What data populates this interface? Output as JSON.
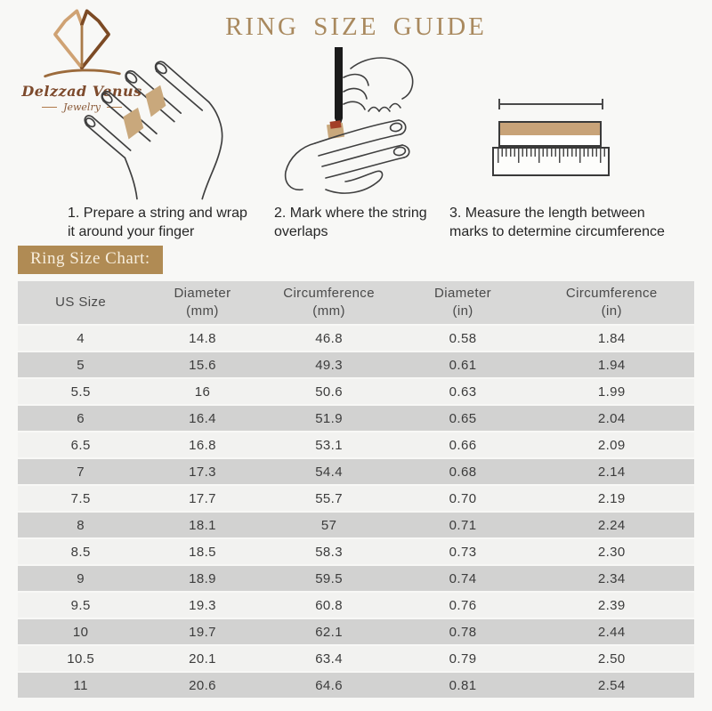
{
  "brand": {
    "name": "Delzzad Venus",
    "subtitle": "Jewelry"
  },
  "title": "RING SIZE GUIDE",
  "steps": [
    {
      "icon": "hand-with-string-icon",
      "line1": "1. Prepare a string and wrap",
      "line2": "it around your finger"
    },
    {
      "icon": "hand-marking-pen-icon",
      "line1": "2. Mark where the string",
      "line2": "overlaps"
    },
    {
      "icon": "ruler-measure-icon",
      "line1": "3. Measure the length between",
      "line2": "marks to determine circumference"
    }
  ],
  "chart_label": "Ring Size Chart:",
  "table": {
    "headers": [
      {
        "l1": "US Size",
        "l2": ""
      },
      {
        "l1": "Diameter",
        "l2": "(mm)"
      },
      {
        "l1": "Circumference",
        "l2": "(mm)"
      },
      {
        "l1": "Diameter",
        "l2": "(in)"
      },
      {
        "l1": "Circumference",
        "l2": "(in)"
      }
    ],
    "rows": [
      [
        "4",
        "14.8",
        "46.8",
        "0.58",
        "1.84"
      ],
      [
        "5",
        "15.6",
        "49.3",
        "0.61",
        "1.94"
      ],
      [
        "5.5",
        "16",
        "50.6",
        "0.63",
        "1.99"
      ],
      [
        "6",
        "16.4",
        "51.9",
        "0.65",
        "2.04"
      ],
      [
        "6.5",
        "16.8",
        "53.1",
        "0.66",
        "2.09"
      ],
      [
        "7",
        "17.3",
        "54.4",
        "0.68",
        "2.14"
      ],
      [
        "7.5",
        "17.7",
        "55.7",
        "0.70",
        "2.19"
      ],
      [
        "8",
        "18.1",
        "57",
        "0.71",
        "2.24"
      ],
      [
        "8.5",
        "18.5",
        "58.3",
        "0.73",
        "2.30"
      ],
      [
        "9",
        "18.9",
        "59.5",
        "0.74",
        "2.34"
      ],
      [
        "9.5",
        "19.3",
        "60.8",
        "0.76",
        "2.39"
      ],
      [
        "10",
        "19.7",
        "62.1",
        "0.78",
        "2.44"
      ],
      [
        "10.5",
        "20.1",
        "63.4",
        "0.79",
        "2.50"
      ],
      [
        "11",
        "20.6",
        "64.6",
        "0.81",
        "2.54"
      ]
    ]
  },
  "colors": {
    "page_bg": "#f8f8f6",
    "title_gold": "#a9895e",
    "badge_gold": "#b08b54",
    "tan_fill": "#c8a379",
    "logo_brown": "#7d4a2c",
    "header_bg": "#d8d8d7",
    "row_gray": "#d2d2d1",
    "row_light": "#f2f2f0"
  }
}
